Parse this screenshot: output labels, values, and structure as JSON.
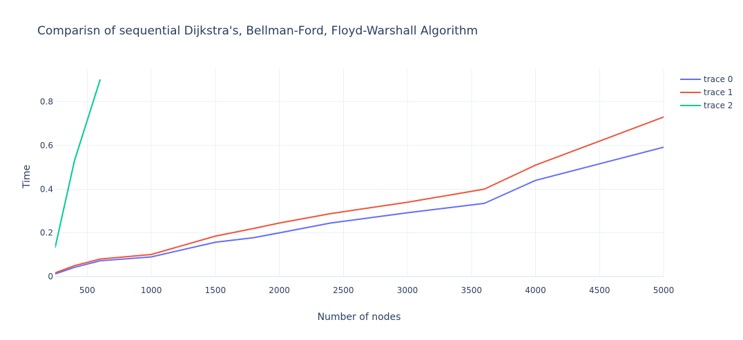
{
  "chart_data": {
    "type": "line",
    "title": "Comparisn of sequential Dijkstra's, Bellman-Ford, Floyd-Warshall Algorithm",
    "xlabel": "Number of nodes",
    "ylabel": "Time",
    "xlim": [
      250,
      5000
    ],
    "ylim": [
      0,
      0.95
    ],
    "xticks": [
      500,
      1000,
      1500,
      2000,
      2500,
      3000,
      3500,
      4000,
      4500,
      5000
    ],
    "yticks": [
      0,
      0.2,
      0.4,
      0.6,
      0.8
    ],
    "grid": true,
    "legend_position": "top-right",
    "series": [
      {
        "name": "trace 0",
        "color": "#636efa",
        "x": [
          250,
          400,
          600,
          1000,
          1500,
          1800,
          2000,
          2400,
          3000,
          3600,
          4000,
          5000
        ],
        "y": [
          0.012,
          0.042,
          0.072,
          0.09,
          0.157,
          0.178,
          0.2,
          0.245,
          0.292,
          0.335,
          0.44,
          0.592
        ]
      },
      {
        "name": "trace 1",
        "color": "#ef553b",
        "x": [
          250,
          400,
          600,
          1000,
          1500,
          1800,
          2000,
          2400,
          3000,
          3600,
          4000,
          5000
        ],
        "y": [
          0.017,
          0.05,
          0.08,
          0.101,
          0.185,
          0.22,
          0.245,
          0.288,
          0.34,
          0.4,
          0.51,
          0.73
        ]
      },
      {
        "name": "trace 2",
        "color": "#00cc96",
        "x": [
          250,
          400,
          600
        ],
        "y": [
          0.135,
          0.53,
          0.9
        ]
      }
    ]
  }
}
